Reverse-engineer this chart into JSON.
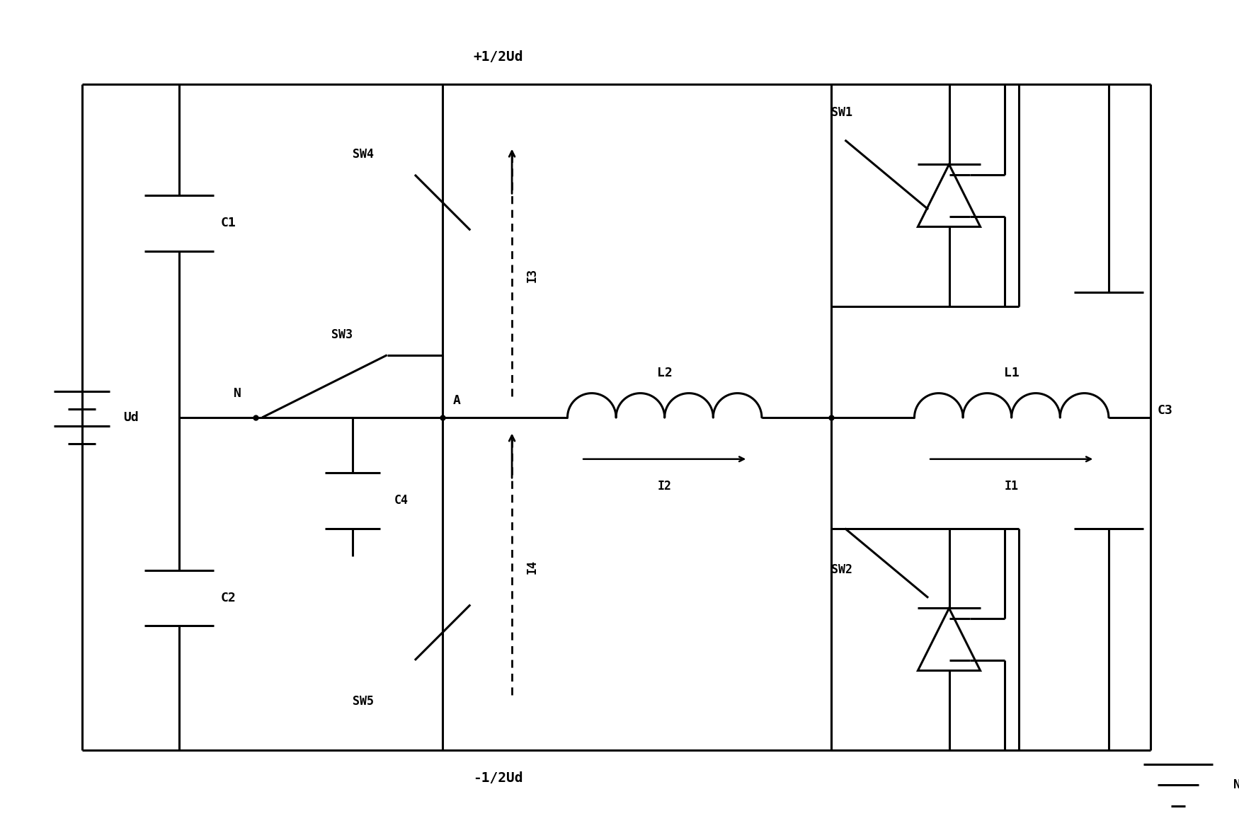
{
  "background_color": "#ffffff",
  "line_color": "#000000",
  "line_width": 2.2,
  "fig_width": 17.5,
  "fig_height": 11.7,
  "xlim": [
    0,
    175
  ],
  "ylim": [
    0,
    117
  ]
}
